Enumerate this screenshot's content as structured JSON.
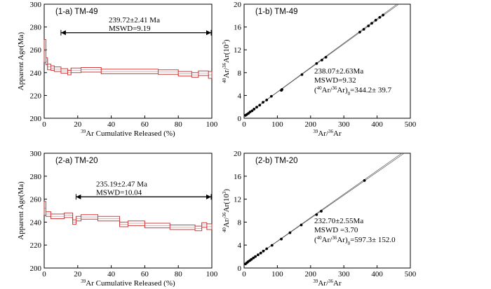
{
  "chart_data": [
    {
      "id": "p1a",
      "type": "step-spectrum",
      "panel_label": "(1-a)",
      "sample": "TM-49",
      "xlabel_sup": "39",
      "xlabel_rest": "Ar Cumulative Released (%)",
      "ylabel": "Apparent Age(Ma)",
      "xlim": [
        0,
        100
      ],
      "ylim": [
        200,
        300
      ],
      "xticks": [
        0,
        20,
        40,
        60,
        80,
        100
      ],
      "yticks": [
        200,
        220,
        240,
        260,
        280,
        300
      ],
      "plateau_age": "239.72±2.41 Ma",
      "mswd": "MSWD=9.19",
      "plateau_range": [
        10,
        101
      ],
      "plateau_y": 275,
      "steps": [
        {
          "x0": 0,
          "x1": 1,
          "y": 259,
          "e": 10
        },
        {
          "x0": 1,
          "x1": 2,
          "y": 250,
          "e": 3
        },
        {
          "x0": 2,
          "x1": 4,
          "y": 245,
          "e": 2.5
        },
        {
          "x0": 4,
          "x1": 6,
          "y": 244,
          "e": 2
        },
        {
          "x0": 6,
          "x1": 10,
          "y": 243,
          "e": 2
        },
        {
          "x0": 10,
          "x1": 14,
          "y": 241.5,
          "e": 2
        },
        {
          "x0": 14,
          "x1": 16,
          "y": 240,
          "e": 2
        },
        {
          "x0": 16,
          "x1": 22,
          "y": 242,
          "e": 2
        },
        {
          "x0": 22,
          "x1": 34,
          "y": 242.5,
          "e": 2
        },
        {
          "x0": 34,
          "x1": 68,
          "y": 241,
          "e": 2
        },
        {
          "x0": 68,
          "x1": 80,
          "y": 240.5,
          "e": 2
        },
        {
          "x0": 80,
          "x1": 88,
          "y": 239,
          "e": 2
        },
        {
          "x0": 88,
          "x1": 92,
          "y": 238,
          "e": 2
        },
        {
          "x0": 92,
          "x1": 98,
          "y": 239.5,
          "e": 2
        },
        {
          "x0": 98,
          "x1": 100,
          "y": 238,
          "e": 3
        }
      ]
    },
    {
      "id": "p1b",
      "type": "scatter",
      "panel_label": "(1-b)",
      "sample": "TM-49",
      "xlim": [
        0,
        500
      ],
      "ylim": [
        0,
        20
      ],
      "xticks": [
        0,
        100,
        200,
        300,
        400,
        500
      ],
      "yticks": [
        0,
        4,
        8,
        12,
        16,
        20
      ],
      "xlabel": [
        "39",
        "Ar/",
        "36",
        "Ar"
      ],
      "ylabel": [
        "40",
        "Ar/",
        "36",
        "Ar(10",
        "3",
        ")"
      ],
      "iso_age": "238.07±2.63Ma",
      "mswd": "MSWD=9.32",
      "initial_ratio": [
        "(",
        "40",
        "Ar/",
        "36",
        "Ar)",
        "0",
        "=344.2± 39.7"
      ],
      "line": {
        "intercept": 0.344,
        "slope_low": 0.04225,
        "slope_high": 0.04275
      },
      "points": [
        [
          4,
          0.5
        ],
        [
          8,
          0.66
        ],
        [
          13,
          0.86
        ],
        [
          18,
          1.1
        ],
        [
          24,
          1.3
        ],
        [
          30,
          1.6
        ],
        [
          38,
          1.95
        ],
        [
          47,
          2.3
        ],
        [
          57,
          2.8
        ],
        [
          68,
          3.2
        ],
        [
          82,
          3.85
        ],
        [
          112,
          4.9
        ],
        [
          114,
          5.05
        ],
        [
          174,
          7.65
        ],
        [
          218,
          9.6
        ],
        [
          234,
          10.2
        ],
        [
          246,
          10.7
        ],
        [
          348,
          15.1
        ],
        [
          360,
          15.6
        ],
        [
          374,
          16.2
        ],
        [
          384,
          16.65
        ],
        [
          396,
          17.2
        ],
        [
          408,
          17.7
        ],
        [
          418,
          18.1
        ]
      ]
    },
    {
      "id": "p2a",
      "type": "step-spectrum",
      "panel_label": "(2-a)",
      "sample": "TM-20",
      "xlabel_sup": "39",
      "xlabel_rest": "Ar Cumulative Released (%)",
      "ylabel": "Apparent Age(Ma)",
      "xlim": [
        0,
        100
      ],
      "ylim": [
        200,
        300
      ],
      "xticks": [
        0,
        20,
        40,
        60,
        80,
        100
      ],
      "yticks": [
        200,
        220,
        240,
        260,
        280,
        300
      ],
      "plateau_age": "235.19±2.47 Ma",
      "mswd": "MSWD=10.04",
      "plateau_range": [
        19,
        101
      ],
      "plateau_y": 262,
      "steps": [
        {
          "x0": 0,
          "x1": 1,
          "y": 252,
          "e": 6
        },
        {
          "x0": 1,
          "x1": 4,
          "y": 247,
          "e": 2
        },
        {
          "x0": 4,
          "x1": 12,
          "y": 245,
          "e": 2
        },
        {
          "x0": 12,
          "x1": 17,
          "y": 246,
          "e": 2
        },
        {
          "x0": 17,
          "x1": 19,
          "y": 240,
          "e": 2
        },
        {
          "x0": 19,
          "x1": 22,
          "y": 243,
          "e": 2
        },
        {
          "x0": 22,
          "x1": 32,
          "y": 244.5,
          "e": 2
        },
        {
          "x0": 32,
          "x1": 45,
          "y": 243,
          "e": 2
        },
        {
          "x0": 45,
          "x1": 50,
          "y": 238,
          "e": 2
        },
        {
          "x0": 50,
          "x1": 60,
          "y": 239,
          "e": 2
        },
        {
          "x0": 60,
          "x1": 75,
          "y": 237,
          "e": 2
        },
        {
          "x0": 75,
          "x1": 90,
          "y": 235.5,
          "e": 2
        },
        {
          "x0": 90,
          "x1": 94,
          "y": 234.5,
          "e": 2
        },
        {
          "x0": 94,
          "x1": 97,
          "y": 237.5,
          "e": 2
        },
        {
          "x0": 97,
          "x1": 100,
          "y": 236,
          "e": 2.5
        }
      ]
    },
    {
      "id": "p2b",
      "type": "scatter",
      "panel_label": "(2-b)",
      "sample": "TM-20",
      "xlim": [
        0,
        500
      ],
      "ylim": [
        0,
        20
      ],
      "xticks": [
        0,
        100,
        200,
        300,
        400,
        500
      ],
      "yticks": [
        0,
        4,
        8,
        12,
        16,
        20
      ],
      "xlabel": [
        "39",
        "Ar/",
        "36",
        "Ar"
      ],
      "ylabel": [
        "40",
        "Ar/",
        "36",
        "Ar(10",
        "3",
        ")"
      ],
      "iso_age": "232.70±2.55Ma",
      "mswd": "MSWD =3.70",
      "initial_ratio": [
        "(",
        "40",
        "Ar/",
        "36",
        "Ar)",
        "0",
        "=597.3± 152.0"
      ],
      "line": {
        "intercept": 0.597,
        "slope_low": 0.0403,
        "slope_high": 0.0409
      },
      "points": [
        [
          4,
          0.7
        ],
        [
          8,
          0.9
        ],
        [
          12,
          1.1
        ],
        [
          17,
          1.3
        ],
        [
          22,
          1.5
        ],
        [
          28,
          1.75
        ],
        [
          34,
          2.0
        ],
        [
          42,
          2.3
        ],
        [
          50,
          2.6
        ],
        [
          58,
          2.95
        ],
        [
          68,
          3.35
        ],
        [
          84,
          3.95
        ],
        [
          112,
          5.05
        ],
        [
          138,
          6.15
        ],
        [
          172,
          7.5
        ],
        [
          218,
          9.3
        ],
        [
          232,
          9.9
        ],
        [
          362,
          15.25
        ]
      ]
    }
  ]
}
